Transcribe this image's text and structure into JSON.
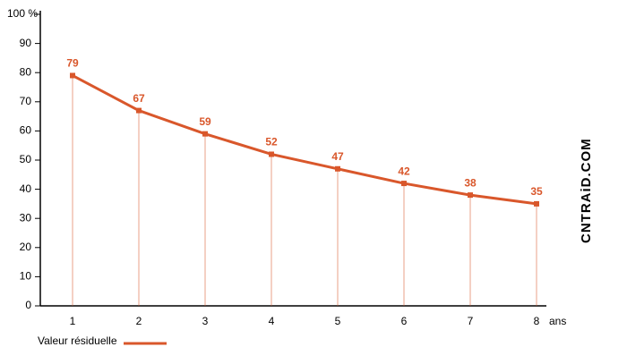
{
  "chart_data": {
    "type": "line",
    "categories": [
      "1",
      "2",
      "3",
      "4",
      "5",
      "6",
      "7",
      "8"
    ],
    "x_unit": "ans",
    "series": [
      {
        "name": "Valeur résiduelle",
        "color": "#d9572b",
        "values": [
          79,
          67,
          59,
          52,
          47,
          42,
          38,
          35
        ]
      }
    ],
    "ylim": [
      0,
      100
    ],
    "yticks": [
      0,
      10,
      20,
      30,
      40,
      50,
      60,
      70,
      80,
      90,
      {
        "value": 100,
        "label": "100 %"
      }
    ],
    "watermark": "CNTRAiD.COM"
  }
}
